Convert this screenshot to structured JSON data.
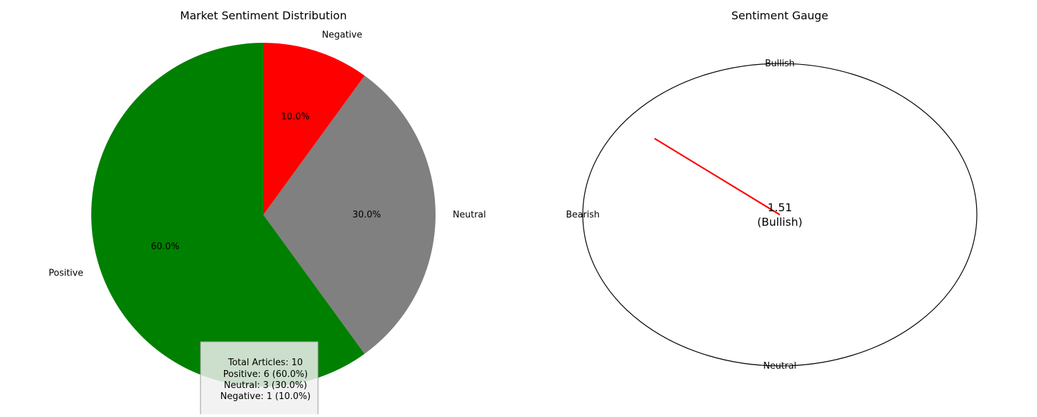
{
  "chart_data": [
    {
      "type": "pie",
      "title": "Market Sentiment Distribution",
      "categories": [
        "Positive",
        "Neutral",
        "Negative"
      ],
      "values": [
        60.0,
        30.0,
        10.0
      ],
      "percent_labels": [
        "60.0%",
        "30.0%",
        "10.0%"
      ],
      "colors": [
        "#008000",
        "#808080",
        "#ff0000"
      ],
      "start_angle_deg": 90,
      "direction": "counterclockwise",
      "stats_box": {
        "lines": [
          "Total Articles: 10",
          "Positive: 6 (60.0%)",
          "Neutral: 3 (30.0%)",
          "Negative: 1 (10.0%)"
        ]
      }
    },
    {
      "type": "gauge",
      "title": "Sentiment Gauge",
      "labels": {
        "top": "Bullish",
        "left": "Bearish",
        "bottom": "Neutral"
      },
      "value": 1.51,
      "value_text": "1.51",
      "state_text": "(Bullish)",
      "needle_angle_deg": 142,
      "needle_color": "#ff0000"
    }
  ]
}
